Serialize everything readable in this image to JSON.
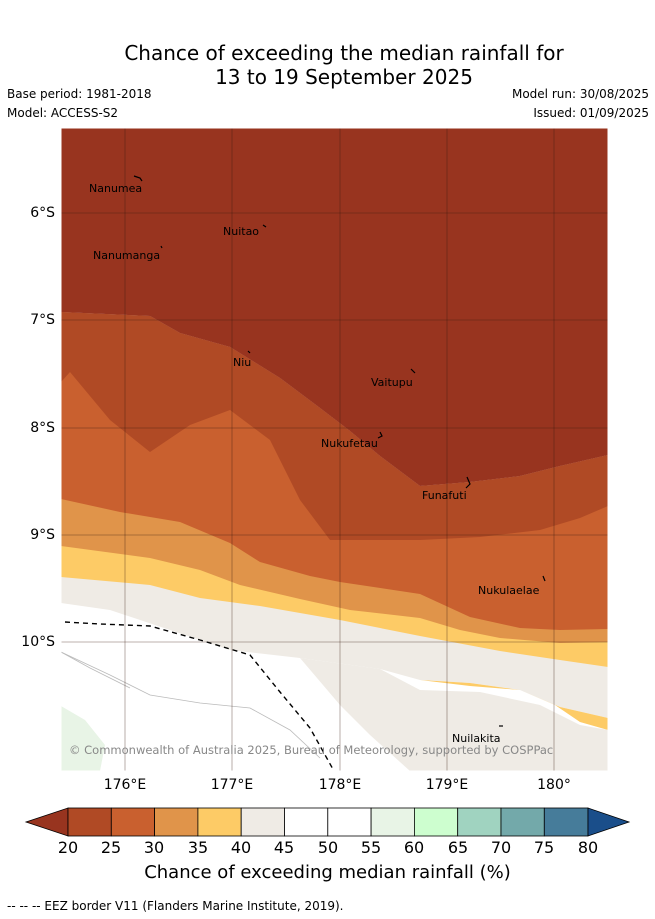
{
  "title_line1": "Chance of exceeding the median rainfall for",
  "title_line2": "13 to 19 September 2025",
  "base_period": "Base period: 1981-2018",
  "model": "Model: ACCESS-S2",
  "model_run": "Model run: 30/08/2025",
  "issued": "Issued: 01/09/2025",
  "copyright": "© Commonwealth of Australia 2025, Bureau of Meteorology, supported by COSPPac",
  "lat_ticks": [
    "6°S",
    "7°S",
    "8°S",
    "9°S",
    "10°S"
  ],
  "lon_ticks": [
    "176°E",
    "177°E",
    "178°E",
    "179°E",
    "180°"
  ],
  "places": [
    {
      "name": "Nanumea"
    },
    {
      "name": "Nuitao"
    },
    {
      "name": "Nanumanga"
    },
    {
      "name": "Niu"
    },
    {
      "name": "Vaitupu"
    },
    {
      "name": "Nukufetau"
    },
    {
      "name": "Funafuti"
    },
    {
      "name": "Nukulaelae"
    },
    {
      "name": "Nuilakita"
    }
  ],
  "colorbar": {
    "ticks": [
      "20",
      "25",
      "30",
      "35",
      "40",
      "45",
      "50",
      "55",
      "60",
      "65",
      "70",
      "75",
      "80"
    ],
    "colors": [
      "#98341f",
      "#b04a25",
      "#c9602f",
      "#e0944a",
      "#fdcb66",
      "#efebe5",
      "#ffffff",
      "#ffffff",
      "#e8f4e6",
      "#cdfecf",
      "#a0d3c0",
      "#73a9aa",
      "#467c9a",
      "#1a4e8a"
    ],
    "title": "Chance of exceeding median rainfall (%)"
  },
  "legend_note": "-- -- -- EEZ border V11 (Flanders Marine Institute, 2019)."
}
